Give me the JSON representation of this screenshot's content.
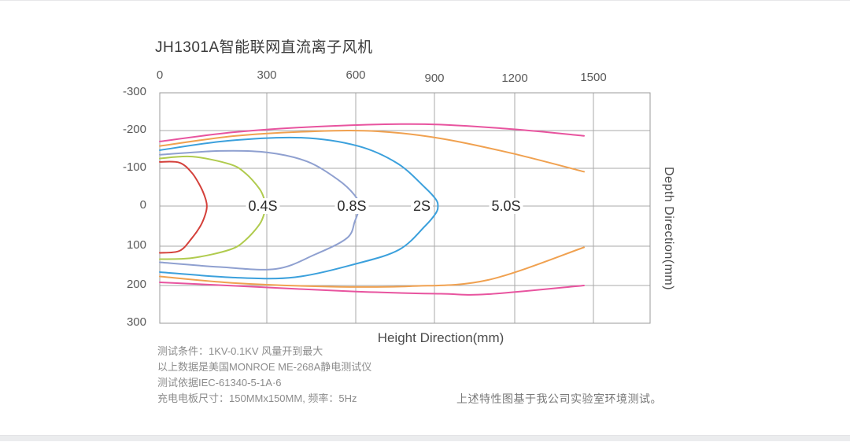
{
  "chart": {
    "title": "JH1301A智能联网直流离子风机",
    "xlabel": "Height Direction(mm)",
    "ylabel": "Depth Direction(mm)"
  },
  "chart_data": {
    "type": "line",
    "title": "JH1301A智能联网直流离子风机",
    "xlabel": "Height Direction(mm)",
    "ylabel": "Depth Direction(mm)",
    "x_ticks": [
      0,
      300,
      600,
      900,
      1200,
      1500
    ],
    "y_ticks": [
      -300,
      -200,
      -100,
      0,
      100,
      200,
      300
    ],
    "xlim": [
      0,
      1700
    ],
    "ylim": [
      -300,
      300
    ],
    "grid": true,
    "legend_position": "none",
    "curve_labels": [
      "0.4S",
      "0.8S",
      "2S",
      "5.0S"
    ],
    "series": [
      {
        "id": "outer-magenta",
        "name": "",
        "color": "#e8549f",
        "paths": [
          [
            [
              0,
              -171
            ],
            [
              213,
              -196
            ],
            [
              515,
              -212
            ],
            [
              864,
              -217
            ],
            [
              1188,
              -204
            ],
            [
              1464,
              -186
            ]
          ],
          [
            [
              0,
              192
            ],
            [
              213,
              201
            ],
            [
              594,
              216
            ],
            [
              924,
              222
            ],
            [
              1100,
              223
            ],
            [
              1464,
              200
            ]
          ]
        ]
      },
      {
        "id": "5.0s-orange",
        "name": "5.0S",
        "color": "#f0a150",
        "paths": [
          [
            [
              0,
              -159
            ],
            [
              213,
              -186
            ],
            [
              462,
              -198
            ],
            [
              684,
              -198
            ],
            [
              924,
              -179
            ],
            [
              1188,
              -140
            ],
            [
              1464,
              -91
            ]
          ],
          [
            [
              0,
              177
            ],
            [
              213,
              194
            ],
            [
              515,
              203
            ],
            [
              804,
              202
            ],
            [
              1100,
              186
            ],
            [
              1464,
              103
            ]
          ]
        ]
      },
      {
        "id": "2s-blue",
        "name": "2S",
        "color": "#3ba0dc",
        "paths": [
          [
            [
              0,
              -148
            ],
            [
              191,
              -173
            ],
            [
              418,
              -181
            ],
            [
              609,
              -159
            ],
            [
              759,
              -113
            ],
            [
              864,
              -49
            ],
            [
              905,
              -18
            ],
            [
              913,
              0
            ],
            [
              905,
              18
            ],
            [
              864,
              50
            ],
            [
              765,
              109
            ],
            [
              600,
              145
            ],
            [
              395,
              179
            ],
            [
              213,
              180
            ],
            [
              0,
              166
            ]
          ]
        ]
      },
      {
        "id": "0.8s-slate",
        "name": "0.8S",
        "color": "#8fa0d0",
        "paths": [
          [
            [
              0,
              -136
            ],
            [
              169,
              -146
            ],
            [
              303,
              -142
            ],
            [
              436,
              -118
            ],
            [
              540,
              -70
            ],
            [
              595,
              -30
            ],
            [
              613,
              0
            ],
            [
              597,
              38
            ],
            [
              570,
              80
            ],
            [
              460,
              122
            ],
            [
              330,
              158
            ],
            [
              169,
              153
            ],
            [
              0,
              141
            ]
          ]
        ]
      },
      {
        "id": "0.4s-green",
        "name": "0.4S",
        "color": "#b0cb4e",
        "paths": [
          [
            [
              0,
              -126
            ],
            [
              91,
              -131
            ],
            [
              196,
              -111
            ],
            [
              240,
              -87
            ],
            [
              280,
              -45
            ],
            [
              294,
              -15
            ],
            [
              297,
              0
            ],
            [
              294,
              15
            ],
            [
              280,
              45
            ],
            [
              240,
              85
            ],
            [
              196,
              109
            ],
            [
              91,
              130
            ],
            [
              0,
              133
            ]
          ]
        ]
      },
      {
        "id": "inner-red",
        "name": "",
        "color": "#d4403a",
        "paths": [
          [
            [
              0,
              -117
            ],
            [
              55,
              -115
            ],
            [
              90,
              -88
            ],
            [
              115,
              -50
            ],
            [
              128,
              -20
            ],
            [
              132,
              0
            ],
            [
              128,
              20
            ],
            [
              115,
              48
            ],
            [
              90,
              80
            ],
            [
              55,
              112
            ],
            [
              0,
              117
            ]
          ]
        ]
      }
    ]
  },
  "notes": {
    "lines": [
      "测试条件：1KV-0.1KV 风量开到最大",
      "以上数据是美国MONROE ME-268A静电测试仪",
      "测试依据IEC-61340-5-1A·6",
      "充电电板尺寸：150MMx150MM, 频率：5Hz"
    ],
    "footnote": "上述特性图基于我公司实验室环境测试。"
  },
  "colors": {
    "grid": "#aaaaaa",
    "frame": "#9b9b9b",
    "title": "#3a3a3a",
    "tick": "#595959"
  }
}
